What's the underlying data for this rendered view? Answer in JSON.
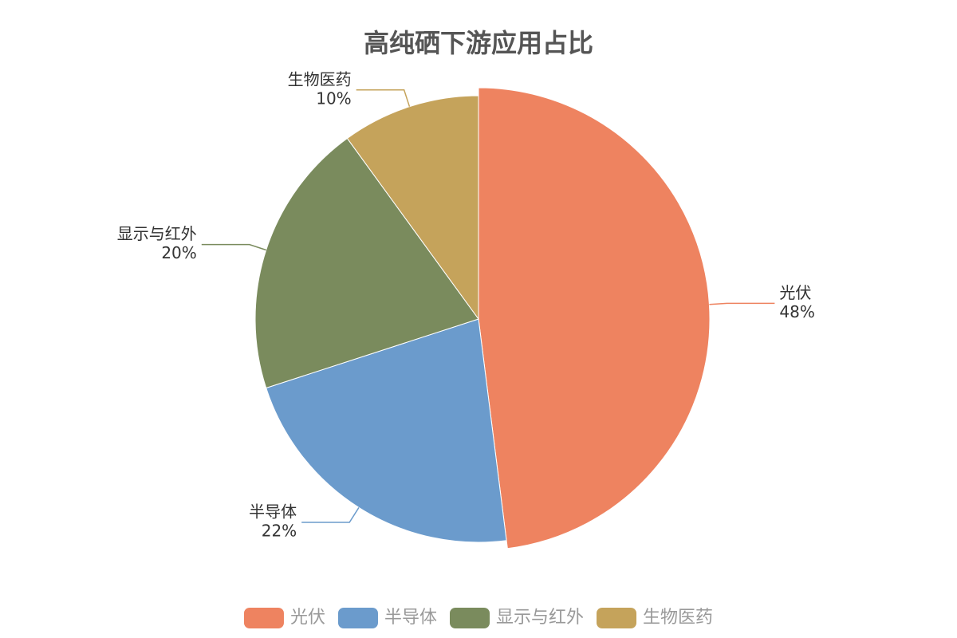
{
  "chart_data": {
    "type": "pie",
    "title": "高纯硒下游应用占比",
    "categories": [
      "光伏",
      "半导体",
      "显示与红外",
      "生物医药"
    ],
    "values": [
      48,
      22,
      20,
      10
    ],
    "value_labels": [
      "48%",
      "22%",
      "20%",
      "10%"
    ],
    "colors": [
      "#ee8360",
      "#6b9bcc",
      "#7a8b5d",
      "#c5a35b"
    ],
    "legend": "bottom"
  }
}
